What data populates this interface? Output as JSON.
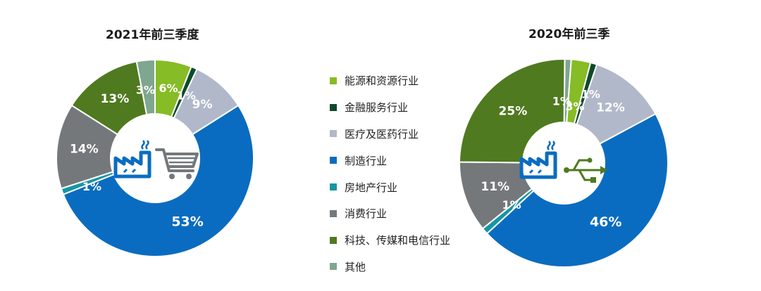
{
  "chart_data": [
    {
      "type": "pie",
      "title": "2021年前三季度",
      "start_category": "能源和资源行业",
      "order": [
        "能源和资源行业",
        "金融服务行业",
        "医疗及医药行业",
        "制造行业",
        "房地产行业",
        "消费行业",
        "科技、传媒和电信行业",
        "其他"
      ],
      "values": [
        6,
        1,
        9,
        53,
        1,
        14,
        13,
        3
      ],
      "labels": [
        "6%",
        "1%",
        "9%",
        "53%",
        "1%",
        "14%",
        "13%",
        "3%"
      ],
      "center_icons": [
        "factory-icon",
        "shopping-cart-icon"
      ]
    },
    {
      "type": "pie",
      "title": "2020年前三季",
      "start_category": "其他",
      "order": [
        "其他",
        "能源和资源行业",
        "金融服务行业",
        "医疗及医药行业",
        "制造行业",
        "房地产行业",
        "消费行业",
        "科技、传媒和电信行业"
      ],
      "values": [
        1,
        3,
        1,
        12,
        46,
        1,
        11,
        25
      ],
      "labels": [
        "1%",
        "3%",
        "1%",
        "12%",
        "46%",
        "1%",
        "11%",
        "25%"
      ],
      "center_icons": [
        "factory-icon",
        "usb-icon"
      ]
    }
  ],
  "legend": [
    {
      "label": "能源和资源行业",
      "color": "#86bc25"
    },
    {
      "label": "金融服务行业",
      "color": "#0d4a2c"
    },
    {
      "label": "医疗及医药行业",
      "color": "#b1b8c9"
    },
    {
      "label": "制造行业",
      "color": "#0a6cc0"
    },
    {
      "label": "房地产行业",
      "color": "#1596a3"
    },
    {
      "label": "消费行业",
      "color": "#75787b"
    },
    {
      "label": "科技、传媒和电信行业",
      "color": "#4f7a1f"
    },
    {
      "label": "其他",
      "color": "#7fa68f"
    }
  ],
  "colors": {
    "能源和资源行业": "#86bc25",
    "金融服务行业": "#0d4a2c",
    "医疗及医药行业": "#b1b8c9",
    "制造行业": "#0a6cc0",
    "房地产行业": "#1596a3",
    "消费行业": "#75787b",
    "科技、传媒和电信行业": "#4f7a1f",
    "其他": "#7fa68f"
  },
  "icon_colors": {
    "factory": "#0a6cc0",
    "cart": "#75787b",
    "usb": "#4f7a1f"
  }
}
